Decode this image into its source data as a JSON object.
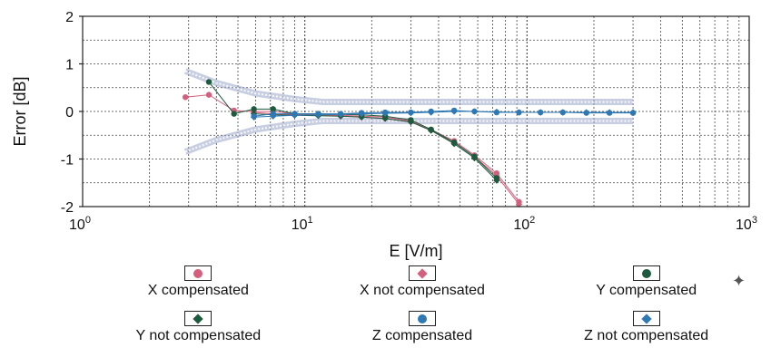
{
  "chart_data": {
    "type": "line",
    "xlabel": "E [V/m]",
    "ylabel": "Error [dB]",
    "x_scale": "log",
    "xlim": [
      1,
      1000
    ],
    "ylim": [
      -2,
      2
    ],
    "x_ticks": [
      {
        "value": 1,
        "base": "10",
        "exp": "0"
      },
      {
        "value": 10,
        "base": "10",
        "exp": "1"
      },
      {
        "value": 100,
        "base": "10",
        "exp": "2"
      },
      {
        "value": 1000,
        "base": "10",
        "exp": "3"
      }
    ],
    "y_ticks": [
      "2",
      "1",
      "0",
      "-1",
      "-2"
    ],
    "grid": true,
    "legend_position": "bottom",
    "uncertainty_band": {
      "upper": {
        "x": [
          2.9,
          4,
          6,
          9,
          12,
          20,
          50,
          100,
          300
        ],
        "y": [
          0.85,
          0.6,
          0.38,
          0.26,
          0.2,
          0.2,
          0.2,
          0.2,
          0.2
        ]
      },
      "lower": {
        "x": [
          2.9,
          4,
          6,
          9,
          12,
          20,
          50,
          100,
          300
        ],
        "y": [
          -0.85,
          -0.6,
          -0.38,
          -0.26,
          -0.2,
          -0.2,
          -0.2,
          -0.2,
          -0.2
        ]
      }
    },
    "series": [
      {
        "name": "X compensated",
        "color": "#d4607e",
        "marker": "circle",
        "x": [
          2.9,
          3.7,
          4.8,
          5.9,
          7.2,
          9,
          11.5,
          14.5,
          18,
          23,
          30,
          37,
          47,
          58,
          73,
          92
        ],
        "y": [
          0.3,
          0.35,
          0.02,
          0.0,
          0.0,
          -0.05,
          -0.07,
          -0.08,
          -0.1,
          -0.12,
          -0.2,
          -0.38,
          -0.62,
          -0.92,
          -1.3,
          -1.9
        ]
      },
      {
        "name": "X not compensated",
        "color": "#d4607e",
        "marker": "diamond",
        "x": [
          5.9,
          7.2,
          9,
          11.5,
          14.5,
          18,
          23,
          30,
          37,
          47,
          58,
          73,
          92
        ],
        "y": [
          -0.02,
          -0.05,
          -0.07,
          -0.08,
          -0.1,
          -0.12,
          -0.15,
          -0.22,
          -0.4,
          -0.65,
          -0.95,
          -1.35,
          -1.95
        ]
      },
      {
        "name": "Y compensated",
        "color": "#1e5a3e",
        "marker": "circle",
        "x": [
          3.7,
          4.8,
          5.9,
          7.2,
          9,
          11.5,
          14.5,
          18,
          23,
          30,
          37,
          47,
          58,
          73
        ],
        "y": [
          0.62,
          -0.05,
          0.05,
          0.05,
          -0.05,
          -0.05,
          -0.06,
          -0.07,
          -0.1,
          -0.18,
          -0.38,
          -0.65,
          -0.95,
          -1.4
        ]
      },
      {
        "name": "Y not compensated",
        "color": "#1e5a3e",
        "marker": "diamond",
        "x": [
          5.9,
          7.2,
          9,
          11.5,
          14.5,
          18,
          23,
          30,
          37,
          47,
          58,
          73
        ],
        "y": [
          -0.05,
          -0.07,
          -0.08,
          -0.09,
          -0.1,
          -0.12,
          -0.15,
          -0.22,
          -0.4,
          -0.68,
          -0.98,
          -1.45
        ]
      },
      {
        "name": "Z compensated",
        "color": "#2e78b4",
        "marker": "circle",
        "x": [
          5.9,
          7.2,
          9,
          11.5,
          14.5,
          18,
          23,
          30,
          37,
          47,
          58,
          73,
          92,
          115,
          145,
          185,
          235,
          300
        ],
        "y": [
          -0.1,
          -0.05,
          -0.05,
          -0.05,
          -0.05,
          -0.03,
          -0.02,
          -0.02,
          0.0,
          0.02,
          0.0,
          -0.02,
          -0.02,
          -0.02,
          -0.02,
          -0.03,
          -0.03,
          -0.03
        ]
      },
      {
        "name": "Z not compensated",
        "color": "#2e78b4",
        "marker": "diamond",
        "x": [
          5.9,
          7.2,
          9,
          11.5,
          14.5,
          18,
          23,
          30,
          37,
          47,
          58,
          73,
          92,
          115,
          145,
          185,
          235,
          300
        ],
        "y": [
          -0.12,
          -0.1,
          -0.08,
          -0.07,
          -0.06,
          -0.05,
          -0.04,
          -0.03,
          -0.02,
          0.0,
          0.0,
          -0.01,
          -0.02,
          -0.02,
          -0.02,
          -0.02,
          -0.02,
          -0.02
        ]
      }
    ]
  },
  "legend": {
    "items": [
      {
        "label": "X compensated",
        "color": "#d4607e",
        "marker": "circle"
      },
      {
        "label": "X not compensated",
        "color": "#d4607e",
        "marker": "diamond"
      },
      {
        "label": "Y compensated",
        "color": "#1e5a3e",
        "marker": "circle"
      },
      {
        "label": "Y not compensated",
        "color": "#1e5a3e",
        "marker": "diamond"
      },
      {
        "label": "Z compensated",
        "color": "#2e78b4",
        "marker": "circle"
      },
      {
        "label": "Z not compensated",
        "color": "#2e78b4",
        "marker": "diamond"
      }
    ]
  }
}
